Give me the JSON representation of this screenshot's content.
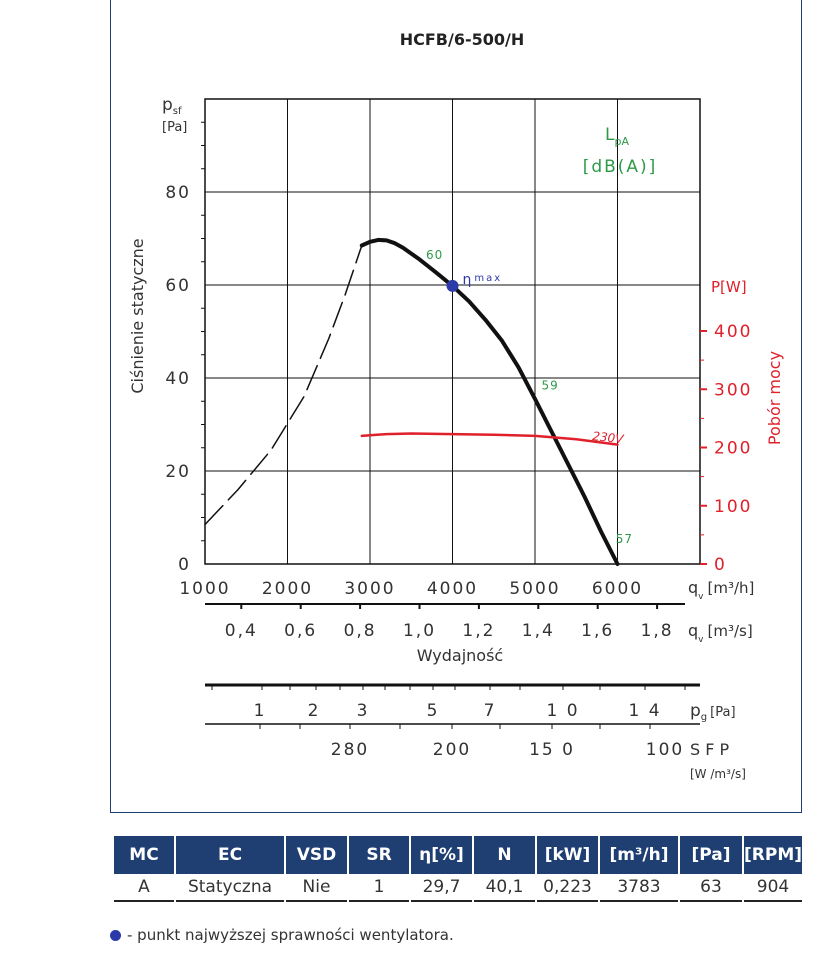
{
  "chart_data": {
    "type": "line",
    "title": "HCFB/6-500/H",
    "ylabel": "Ciśnienie statyczne",
    "ylabel_symbol": "p",
    "ylabel_symbol_sub": "sf",
    "yunit": "[Pa]",
    "ylim": [
      0,
      100
    ],
    "yticks": [
      "0",
      "20",
      "40",
      "60",
      "80"
    ],
    "xlabel": "Wydajność",
    "xlim": [
      1000,
      7000
    ],
    "xticks_m3h": [
      "1000",
      "2000",
      "3000",
      "4000",
      "5000",
      "6000"
    ],
    "xunit_m3h_symbol": "q",
    "xunit_m3h_sub": "v",
    "xunit_m3h": "[m³/h]",
    "xticks_m3s": [
      "0,4",
      "0,6",
      "0,8",
      "1,0",
      "1,2",
      "1,4",
      "1,6",
      "1,8"
    ],
    "xunit_m3s": "[m³/s]",
    "y2label": "Pobór mocy",
    "y2unit": "P[W]",
    "y2lim": [
      0,
      400
    ],
    "y2ticks": [
      "0",
      "100",
      "200",
      "300",
      "400"
    ],
    "lpa_label": "L",
    "lpa_sub": "pA",
    "lpa_unit": "[dB(A)]",
    "eta_label": "η",
    "eta_sub": "max",
    "series": [
      {
        "name": "pressure",
        "color": "#111111",
        "style": "solid",
        "x": [
          2900,
          3000,
          3100,
          3200,
          3300,
          3400,
          3600,
          3800,
          4000,
          4200,
          4400,
          4600,
          4800,
          5000,
          5200,
          5400,
          5600,
          5800,
          6000
        ],
        "y": [
          68.5,
          69.3,
          69.7,
          69.6,
          69,
          68,
          65.5,
          62.7,
          59.8,
          56.5,
          52.5,
          48,
          42.3,
          35.5,
          28.5,
          21.5,
          14.5,
          7,
          0
        ]
      },
      {
        "name": "stall",
        "color": "#111111",
        "style": "dashed",
        "x": [
          1000,
          1400,
          1800,
          2200,
          2500,
          2700,
          2900
        ],
        "y": [
          8.5,
          16,
          24.5,
          36,
          48.5,
          58,
          68.5
        ]
      },
      {
        "name": "230V",
        "color": "#e0202a",
        "style": "solid",
        "y_axis": "P",
        "x": [
          2900,
          3200,
          3500,
          4000,
          4500,
          5000,
          5500,
          6000
        ],
        "y": [
          220,
          223,
          224,
          223,
          222,
          220,
          214,
          205
        ]
      }
    ],
    "eta_point": {
      "x": 4000,
      "y": 59.8
    },
    "lpa_points": [
      {
        "label": "60",
        "x": 3800,
        "y": 66
      },
      {
        "label": "59",
        "x": 5200,
        "y": 38
      },
      {
        "label": "57",
        "x": 6100,
        "y": 5
      }
    ],
    "power_label": "230V",
    "pg_label": "p",
    "pg_sub": "g",
    "pg_unit": "[Pa]",
    "pg_ticks": [
      "1",
      "2",
      "3",
      "5",
      "7",
      "1 0",
      "1 4"
    ],
    "sfp_label": "S F P",
    "sfp_unit": "[W /m³/s]",
    "sfp_ticks": [
      "280",
      "200",
      "15 0",
      "100"
    ],
    "grid": true
  },
  "table": {
    "headers": [
      "MC",
      "EC",
      "VSD",
      "SR",
      "η[%]",
      "N",
      "[kW]",
      "[m³/h]",
      "[Pa]",
      "[RPM]"
    ],
    "row": [
      "A",
      "Statyczna",
      "Nie",
      "1",
      "29,7",
      "40,1",
      "0,223",
      "3783",
      "63",
      "904"
    ]
  },
  "note": "- punkt najwyższej sprawności wentylatora."
}
